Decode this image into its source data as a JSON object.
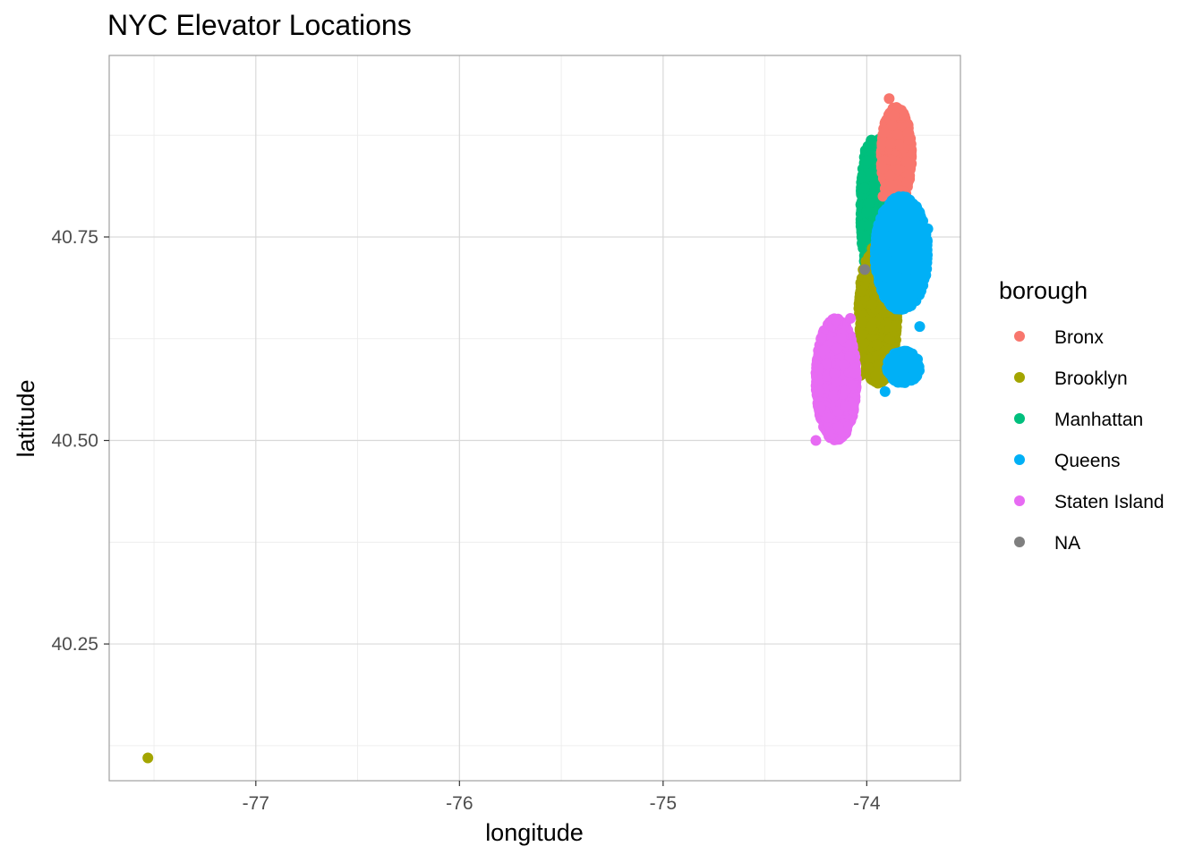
{
  "chart_data": {
    "type": "scatter",
    "title": "NYC Elevator Locations",
    "xlabel": "longitude",
    "ylabel": "latitude",
    "xlim": [
      -77.72,
      -73.54
    ],
    "ylim": [
      40.082,
      40.973
    ],
    "x_ticks": [
      -77,
      -76,
      -75,
      -74
    ],
    "x_tick_labels": [
      "-77",
      "-76",
      "-75",
      "-74"
    ],
    "x_minor_ticks": [
      -77.5,
      -76.5,
      -75.5,
      -74.5,
      -73.5
    ],
    "y_ticks": [
      40.25,
      40.5,
      40.75
    ],
    "y_tick_labels": [
      "40.25",
      "40.50",
      "40.75"
    ],
    "y_minor_ticks": [
      40.125,
      40.375,
      40.625,
      40.875
    ],
    "grid": true,
    "legend": {
      "title": "borough",
      "position": "right",
      "entries": [
        {
          "label": "Bronx",
          "color": "#F8766D"
        },
        {
          "label": "Brooklyn",
          "color": "#A3A500"
        },
        {
          "label": "Manhattan",
          "color": "#00BF7D"
        },
        {
          "label": "Queens",
          "color": "#00B0F6"
        },
        {
          "label": "Staten Island",
          "color": "#E76BF3"
        },
        {
          "label": "NA",
          "color": "#7F7F7F"
        }
      ]
    },
    "series": [
      {
        "name": "Manhattan",
        "color": "#00BF7D",
        "regions": [
          {
            "lon": [
              -74.03,
              -73.93
            ],
            "lat": [
              40.7,
              40.87
            ]
          }
        ],
        "points": [
          {
            "x": -74.02,
            "y": 40.7
          },
          {
            "x": -73.94,
            "y": 40.87
          }
        ]
      },
      {
        "name": "Brooklyn",
        "color": "#A3A500",
        "regions": [
          {
            "lon": [
              -74.04,
              -73.85
            ],
            "lat": [
              40.57,
              40.74
            ]
          }
        ],
        "points": [
          {
            "x": -77.53,
            "y": 40.11
          },
          {
            "x": -74.03,
            "y": 40.58
          },
          {
            "x": -73.86,
            "y": 40.74
          }
        ]
      },
      {
        "name": "Bronx",
        "color": "#F8766D",
        "regions": [
          {
            "lon": [
              -73.93,
              -73.78
            ],
            "lat": [
              40.79,
              40.91
            ]
          }
        ],
        "points": [
          {
            "x": -73.89,
            "y": 40.92
          },
          {
            "x": -73.92,
            "y": 40.8
          },
          {
            "x": -73.79,
            "y": 40.87
          }
        ]
      },
      {
        "name": "Queens",
        "color": "#00B0F6",
        "regions": [
          {
            "lon": [
              -73.96,
              -73.7
            ],
            "lat": [
              40.66,
              40.8
            ]
          },
          {
            "lon": [
              -73.9,
              -73.74
            ],
            "lat": [
              40.57,
              40.61
            ]
          }
        ],
        "points": [
          {
            "x": -73.91,
            "y": 40.56
          },
          {
            "x": -73.74,
            "y": 40.64
          },
          {
            "x": -73.7,
            "y": 40.76
          }
        ]
      },
      {
        "name": "Staten Island",
        "color": "#E76BF3",
        "regions": [
          {
            "lon": [
              -74.25,
              -74.05
            ],
            "lat": [
              40.5,
              40.65
            ]
          }
        ],
        "points": [
          {
            "x": -74.25,
            "y": 40.5
          },
          {
            "x": -74.08,
            "y": 40.65
          }
        ]
      },
      {
        "name": "NA",
        "color": "#7F7F7F",
        "regions": [],
        "points": [
          {
            "x": -74.01,
            "y": 40.71
          }
        ]
      }
    ]
  }
}
